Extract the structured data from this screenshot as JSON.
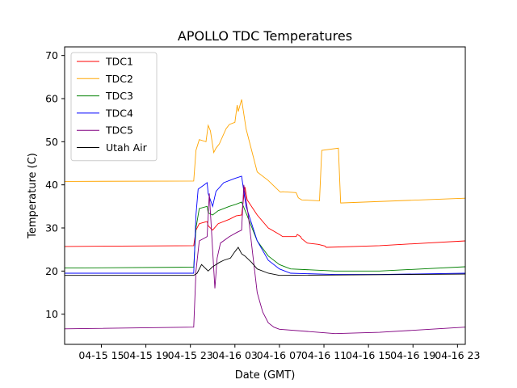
{
  "chart_data": {
    "type": "line",
    "title": "APOLLO TDC Temperatures",
    "xlabel": "Date (GMT)",
    "ylabel": "Temperature (C)",
    "xlim": [
      11.7,
      47.7
    ],
    "ylim": [
      3,
      72
    ],
    "x_ticks": [
      15,
      19,
      23,
      27,
      31,
      35,
      39,
      43,
      47
    ],
    "x_tick_labels": [
      "04-15 15",
      "04-15 19",
      "04-15 23",
      "04-16 03",
      "04-16 07",
      "04-16 11",
      "04-16 15",
      "04-16 19",
      "04-16 23"
    ],
    "y_ticks": [
      10,
      20,
      30,
      40,
      50,
      60,
      70
    ],
    "y_tick_labels": [
      "10",
      "20",
      "30",
      "40",
      "50",
      "60",
      "70"
    ],
    "x_unit": "hours since 04-15 00:00 GMT",
    "legend_position": "upper-left",
    "series": [
      {
        "name": "TDC1",
        "color": "#ff0000",
        "x": [
          11.7,
          23.3,
          23.5,
          23.8,
          24.5,
          24.6,
          25.0,
          25.5,
          26.5,
          27.1,
          27.6,
          27.9,
          28.1,
          29.0,
          30.0,
          31.0,
          31.3,
          32.5,
          32.6,
          32.9,
          33.0,
          33.5,
          34.5,
          35.1,
          35.2,
          40.0,
          47.7
        ],
        "y": [
          25.7,
          25.9,
          29.5,
          31.0,
          31.5,
          30.5,
          29.5,
          31.0,
          32.0,
          32.8,
          33.0,
          39.5,
          36.5,
          33.0,
          30.0,
          28.5,
          28.0,
          28.0,
          28.5,
          28.0,
          27.5,
          26.5,
          26.2,
          25.8,
          25.5,
          25.9,
          27.0
        ]
      },
      {
        "name": "TDC2",
        "color": "#ffa500",
        "x": [
          11.7,
          23.3,
          23.5,
          23.8,
          24.4,
          24.6,
          24.8,
          25.1,
          25.3,
          25.6,
          26.2,
          26.5,
          27.0,
          27.2,
          27.3,
          27.6,
          28.0,
          28.5,
          29.0,
          30.0,
          31.0,
          31.1,
          31.3,
          32.5,
          32.7,
          33.0,
          34.6,
          34.8,
          36.3,
          36.5,
          47.7
        ],
        "y": [
          40.8,
          40.9,
          48.0,
          50.5,
          50.0,
          53.8,
          52.5,
          47.5,
          48.5,
          49.5,
          53.0,
          54.0,
          54.5,
          58.5,
          57.0,
          59.8,
          53.0,
          48.0,
          43.0,
          41.0,
          38.5,
          38.3,
          38.4,
          38.2,
          37.0,
          36.5,
          36.3,
          48.0,
          48.5,
          35.8,
          36.9
        ]
      },
      {
        "name": "TDC3",
        "color": "#008000",
        "x": [
          11.7,
          23.3,
          23.5,
          23.8,
          24.5,
          24.6,
          25.0,
          25.5,
          26.5,
          27.1,
          27.6,
          28.0,
          29.0,
          30.0,
          31.0,
          32.0,
          36.0,
          40.0,
          47.7
        ],
        "y": [
          20.7,
          20.9,
          30.0,
          34.5,
          35.0,
          33.5,
          33.0,
          34.0,
          35.0,
          35.5,
          36.0,
          33.5,
          27.0,
          23.5,
          21.5,
          20.5,
          20.0,
          20.0,
          21.0
        ]
      },
      {
        "name": "TDC4",
        "color": "#0000ff",
        "x": [
          11.7,
          23.3,
          23.5,
          23.7,
          24.5,
          24.6,
          25.0,
          25.3,
          26.0,
          27.0,
          27.6,
          28.0,
          29.0,
          30.0,
          31.0,
          32.0,
          36.0,
          40.0,
          47.7
        ],
        "y": [
          19.5,
          19.5,
          33.0,
          39.0,
          40.5,
          38.0,
          35.0,
          38.5,
          40.5,
          41.5,
          42.0,
          35.0,
          27.0,
          22.5,
          20.5,
          19.5,
          19.2,
          19.2,
          19.5
        ]
      },
      {
        "name": "TDC5",
        "color": "#800080",
        "x": [
          11.7,
          23.3,
          23.5,
          23.8,
          24.5,
          24.7,
          25.2,
          25.4,
          25.7,
          26.5,
          27.2,
          27.6,
          27.8,
          28.2,
          28.6,
          29.0,
          29.5,
          30.0,
          30.5,
          31.0,
          36.0,
          40.0,
          47.7
        ],
        "y": [
          6.6,
          7.0,
          20.0,
          27.0,
          28.0,
          38.0,
          16.0,
          23.0,
          26.5,
          28.0,
          29.0,
          29.5,
          40.0,
          33.0,
          24.0,
          15.0,
          10.5,
          8.0,
          7.0,
          6.5,
          5.5,
          5.8,
          7.0
        ]
      },
      {
        "name": "Utah Air",
        "color": "#000000",
        "x": [
          11.7,
          23.3,
          23.6,
          24.0,
          24.6,
          25.0,
          25.6,
          26.0,
          26.6,
          27.0,
          27.3,
          27.6,
          27.9,
          28.5,
          29.0,
          30.0,
          31.0,
          47.7
        ],
        "y": [
          19.0,
          19.0,
          19.5,
          21.5,
          20.0,
          21.0,
          22.0,
          22.5,
          23.0,
          24.5,
          25.5,
          24.0,
          23.5,
          22.0,
          20.5,
          19.5,
          19.0,
          19.3
        ]
      }
    ]
  }
}
